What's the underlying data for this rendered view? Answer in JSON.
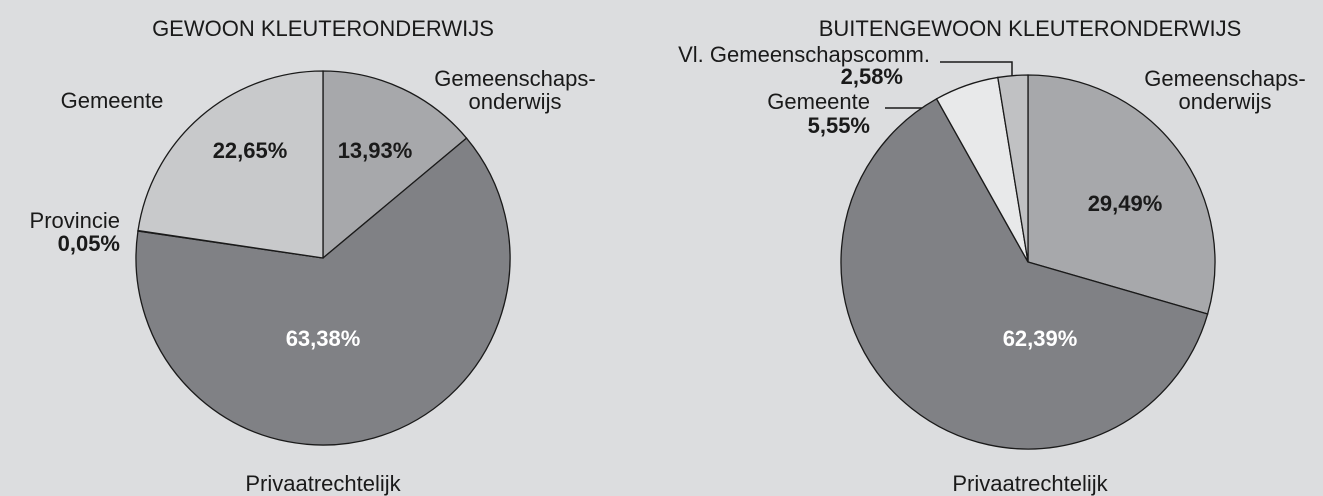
{
  "chart_data": [
    {
      "type": "pie",
      "title": "GEWOON KLEUTERONDERWIJS",
      "categories": [
        "Gemeenschaps-\nonderwijs",
        "Privaatrechtelijk",
        "Provincie",
        "Gemeente"
      ],
      "values": [
        13.93,
        63.38,
        0.05,
        22.65
      ],
      "value_labels": [
        "13,93%",
        "63,38%",
        "0,05%",
        "22,65%"
      ],
      "colors": [
        "#a7a8ab",
        "#808185",
        "#9a9b9e",
        "#c8c9cb"
      ]
    },
    {
      "type": "pie",
      "title": "BUITENGEWOON KLEUTERONDERWIJS",
      "categories": [
        "Gemeenschaps-\nonderwijs",
        "Privaatrechtelijk",
        "Gemeente",
        "Vl. Gemeenschapscomm."
      ],
      "values": [
        29.49,
        62.39,
        5.55,
        2.58
      ],
      "value_labels": [
        "29,49%",
        "62,39%",
        "5,55%",
        "2,58%"
      ],
      "colors": [
        "#a7a8ab",
        "#808185",
        "#e8e9ea",
        "#c0c1c3"
      ]
    }
  ]
}
